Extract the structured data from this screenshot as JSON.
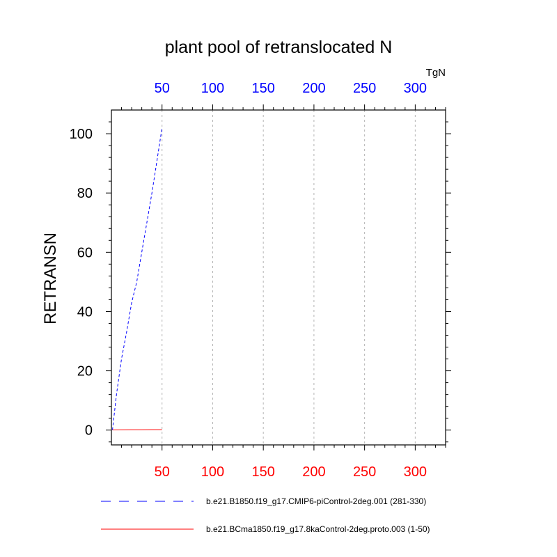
{
  "colors": {
    "background": "#ffffff",
    "axis": "#000000",
    "grid": "#b4b4b4",
    "top_ticks": "#0000ff",
    "bottom_ticks": "#ff0000",
    "series_1": "#0000ff",
    "series_2": "#ff0000"
  },
  "chart_data": {
    "type": "line",
    "title": "plant pool of retranslocated N",
    "units_label": "TgN",
    "ylabel": "RETRANSN",
    "xlabel": "",
    "xlim": [
      0,
      330
    ],
    "ylim": [
      -5,
      108
    ],
    "x_ticks_top": [
      50,
      100,
      150,
      200,
      250,
      300
    ],
    "x_ticks_bottom": [
      50,
      100,
      150,
      200,
      250,
      300
    ],
    "y_ticks": [
      0,
      20,
      40,
      60,
      80,
      100
    ],
    "grid": "vertical dashed at major x ticks",
    "legend_position": "below plot",
    "series": [
      {
        "name": "b.e21.B1850.f19_g17.CMIP6-piControl-2deg.001 (281-330)",
        "line_style": "dashed",
        "color": "#0000ff",
        "x": [
          1,
          5,
          10,
          15,
          20,
          25,
          30,
          35,
          40,
          45,
          50
        ],
        "y": [
          0,
          12,
          24,
          33,
          43,
          50,
          60,
          70,
          80,
          91,
          102
        ]
      },
      {
        "name": "b.e21.BCma1850.f19_g17.8kaControl-2deg.proto.003 (1-50)",
        "line_style": "solid",
        "color": "#ff0000",
        "x": [
          1,
          10,
          20,
          30,
          40,
          50
        ],
        "y": [
          0.05,
          0.08,
          0.1,
          0.12,
          0.14,
          0.15
        ]
      }
    ]
  }
}
